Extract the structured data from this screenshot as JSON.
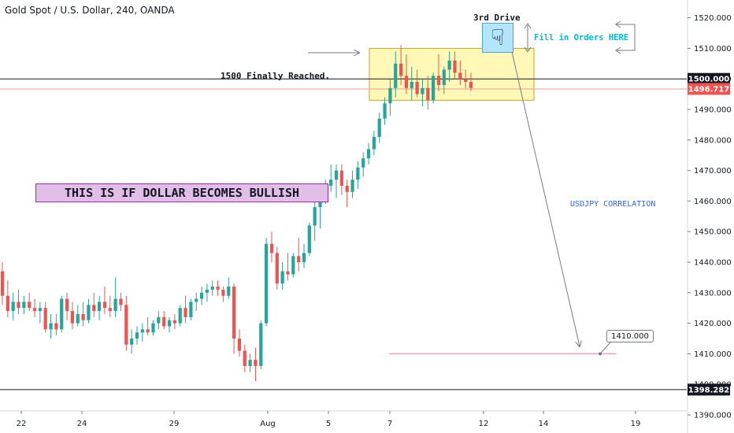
{
  "title": "Gold Spot / U.S. Dollar, 240, OANDA",
  "annotations": {
    "bullish": "THIS IS IF DOLLAR BECOMES BULLISH",
    "reached": "1500 Finally Reached.",
    "third_drive": "3rd Drive",
    "fill_orders": "Fill in Orders HERE",
    "correlation": "USDJPY CORRELATION",
    "target": "1410.000",
    "hand_icon": "pointing-down-hand"
  },
  "colors": {
    "up": "#26a69a",
    "down": "#ef5350",
    "zone_fill": "#fff59d",
    "zone_border": "#c9a227",
    "hand_box_fill": "#b3e5fc",
    "annotation_purple": "#e1bee7",
    "fill_text": "#00bcd4",
    "correlation_text": "#2962ff",
    "target_line": "#f48fb1",
    "price_line_dark": "#131722",
    "price_line_red": "#ef5350"
  },
  "chart_data": {
    "type": "candlestick",
    "title": "Gold Spot / U.S. Dollar, 240, OANDA",
    "y_axis": {
      "ticks": [
        "1390.000",
        "1400.000",
        "1410.000",
        "1420.000",
        "1430.000",
        "1440.000",
        "1450.000",
        "1460.000",
        "1470.000",
        "1480.000",
        "1490.000",
        "1500.000",
        "1510.000",
        "1520.000"
      ],
      "ylim": [
        1388,
        1525
      ]
    },
    "x_axis": {
      "ticks": [
        "22",
        "24",
        "29",
        "Aug",
        "5",
        "7",
        "12",
        "14",
        "19"
      ]
    },
    "price_labels": [
      {
        "value": 1500.0,
        "text": "1500.000",
        "style": "dark"
      },
      {
        "value": 1496.717,
        "text": "1496.717",
        "style": "red"
      },
      {
        "value": 1398.282,
        "text": "1398.282",
        "style": "dark"
      }
    ],
    "horizontal_lines": [
      {
        "value": 1500.0,
        "color": "#131722"
      },
      {
        "value": 1496.717,
        "color": "#ef9a9a"
      },
      {
        "value": 1398.282,
        "color": "#131722"
      }
    ],
    "zone": {
      "from_value": 1493,
      "to_value": 1510
    },
    "target": {
      "value": 1410.0,
      "label": "1410.000"
    },
    "ohlc": [
      [
        1437,
        1440,
        1426,
        1429
      ],
      [
        1429,
        1434,
        1422,
        1424
      ],
      [
        1424,
        1430,
        1421,
        1427
      ],
      [
        1427,
        1431,
        1423,
        1425
      ],
      [
        1425,
        1429,
        1423,
        1427
      ],
      [
        1427,
        1430,
        1424,
        1425
      ],
      [
        1425,
        1428,
        1422,
        1424
      ],
      [
        1424,
        1427,
        1420,
        1425
      ],
      [
        1425,
        1427,
        1417,
        1418
      ],
      [
        1418,
        1423,
        1415,
        1420
      ],
      [
        1420,
        1423,
        1416,
        1418
      ],
      [
        1418,
        1429,
        1417,
        1428
      ],
      [
        1428,
        1430,
        1421,
        1424
      ],
      [
        1424,
        1427,
        1418,
        1420
      ],
      [
        1420,
        1426,
        1419,
        1423
      ],
      [
        1423,
        1427,
        1419,
        1421
      ],
      [
        1421,
        1428,
        1420,
        1426
      ],
      [
        1426,
        1430,
        1422,
        1424
      ],
      [
        1424,
        1429,
        1421,
        1427
      ],
      [
        1427,
        1432,
        1423,
        1425
      ],
      [
        1425,
        1429,
        1422,
        1424
      ],
      [
        1424,
        1435,
        1422,
        1428
      ],
      [
        1428,
        1430,
        1424,
        1426
      ],
      [
        1426,
        1429,
        1411,
        1413
      ],
      [
        1413,
        1418,
        1410,
        1415
      ],
      [
        1415,
        1419,
        1413,
        1417
      ],
      [
        1417,
        1420,
        1414,
        1418
      ],
      [
        1418,
        1422,
        1416,
        1417
      ],
      [
        1417,
        1421,
        1416,
        1420
      ],
      [
        1420,
        1424,
        1418,
        1422
      ],
      [
        1422,
        1424,
        1418,
        1419
      ],
      [
        1419,
        1422,
        1417,
        1421
      ],
      [
        1421,
        1423,
        1418,
        1420
      ],
      [
        1420,
        1426,
        1419,
        1425
      ],
      [
        1425,
        1429,
        1420,
        1422
      ],
      [
        1422,
        1428,
        1421,
        1427
      ],
      [
        1427,
        1430,
        1424,
        1428
      ],
      [
        1428,
        1432,
        1426,
        1430
      ],
      [
        1430,
        1433,
        1427,
        1431
      ],
      [
        1431,
        1434,
        1429,
        1432
      ],
      [
        1432,
        1434,
        1429,
        1431
      ],
      [
        1431,
        1432,
        1427,
        1429
      ],
      [
        1429,
        1435,
        1428,
        1432
      ],
      [
        1432,
        1433,
        1410,
        1415
      ],
      [
        1415,
        1418,
        1409,
        1411
      ],
      [
        1411,
        1413,
        1404,
        1406
      ],
      [
        1406,
        1410,
        1404,
        1408
      ],
      [
        1408,
        1412,
        1401,
        1406
      ],
      [
        1406,
        1421,
        1405,
        1420
      ],
      [
        1420,
        1448,
        1419,
        1446
      ],
      [
        1446,
        1450,
        1440,
        1443
      ],
      [
        1443,
        1445,
        1431,
        1433
      ],
      [
        1433,
        1440,
        1431,
        1437
      ],
      [
        1437,
        1443,
        1434,
        1436
      ],
      [
        1436,
        1443,
        1435,
        1442
      ],
      [
        1442,
        1448,
        1437,
        1440
      ],
      [
        1440,
        1446,
        1438,
        1443
      ],
      [
        1443,
        1453,
        1442,
        1452
      ],
      [
        1452,
        1460,
        1447,
        1458
      ],
      [
        1458,
        1465,
        1451,
        1463
      ],
      [
        1463,
        1467,
        1459,
        1465
      ],
      [
        1465,
        1472,
        1463,
        1467
      ],
      [
        1467,
        1472,
        1461,
        1470
      ],
      [
        1470,
        1472,
        1462,
        1465
      ],
      [
        1465,
        1467,
        1458,
        1463
      ],
      [
        1463,
        1470,
        1461,
        1467
      ],
      [
        1467,
        1473,
        1464,
        1471
      ],
      [
        1471,
        1476,
        1468,
        1474
      ],
      [
        1474,
        1479,
        1472,
        1477
      ],
      [
        1477,
        1483,
        1475,
        1481
      ],
      [
        1481,
        1489,
        1479,
        1487
      ],
      [
        1487,
        1494,
        1485,
        1492
      ],
      [
        1492,
        1500,
        1488,
        1497
      ],
      [
        1497,
        1509,
        1494,
        1505
      ],
      [
        1505,
        1511,
        1498,
        1501
      ],
      [
        1501,
        1508,
        1495,
        1497
      ],
      [
        1497,
        1504,
        1493,
        1499
      ],
      [
        1499,
        1503,
        1494,
        1495
      ],
      [
        1495,
        1500,
        1491,
        1497
      ],
      [
        1497,
        1501,
        1490,
        1493
      ],
      [
        1493,
        1502,
        1492,
        1501
      ],
      [
        1501,
        1508,
        1496,
        1498
      ],
      [
        1498,
        1504,
        1495,
        1503
      ],
      [
        1503,
        1509,
        1499,
        1506
      ],
      [
        1506,
        1509,
        1500,
        1502
      ],
      [
        1502,
        1506,
        1498,
        1500
      ],
      [
        1500,
        1503,
        1497,
        1499
      ],
      [
        1499,
        1502,
        1496,
        1497
      ]
    ]
  }
}
